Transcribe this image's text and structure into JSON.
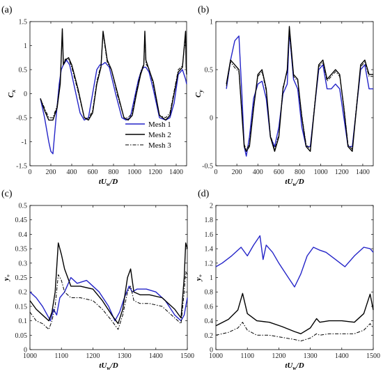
{
  "colors": {
    "mesh1": "#2424c8",
    "mesh2": "#000000",
    "mesh3": "#000000"
  },
  "chart_data": [
    {
      "type": "line",
      "panel_label": "(a)",
      "xlabel": {
        "main": "tU",
        "sub": "w",
        "tail": "/D"
      },
      "ylabel": {
        "main": "C",
        "sub": "x"
      },
      "xlim": [
        0,
        1500
      ],
      "ylim": [
        -1.5,
        1.5
      ],
      "xticks": [
        0,
        200,
        400,
        600,
        800,
        1000,
        1200,
        1400
      ],
      "yticks": [
        -1.5,
        -1,
        -0.5,
        0,
        0.5,
        1,
        1.5
      ],
      "legend": {
        "position": "bottom-right",
        "entries": [
          "Mesh 1",
          "Mesh 2",
          "Mesh 3"
        ]
      },
      "series": [
        {
          "name": "Mesh 1",
          "style": "solid",
          "color": "#2424c8",
          "x": [
            100,
            140,
            180,
            200,
            220,
            250,
            280,
            300,
            320,
            350,
            380,
            420,
            480,
            520,
            560,
            600,
            640,
            670,
            690,
            720,
            760,
            820,
            880,
            920,
            960,
            1000,
            1040,
            1070,
            1090,
            1110,
            1140,
            1180,
            1240,
            1300,
            1340,
            1380,
            1420,
            1460,
            1490,
            1500
          ],
          "y": [
            -0.1,
            -0.5,
            -1.0,
            -1.2,
            -1.25,
            -0.5,
            0.2,
            0.5,
            0.6,
            0.7,
            0.6,
            0.2,
            -0.4,
            -0.55,
            -0.5,
            0.0,
            0.5,
            0.6,
            0.6,
            0.65,
            0.55,
            0.0,
            -0.5,
            -0.55,
            -0.5,
            -0.1,
            0.3,
            0.5,
            0.55,
            0.55,
            0.45,
            0.1,
            -0.5,
            -0.55,
            -0.5,
            -0.2,
            0.4,
            0.5,
            0.3,
            0.2
          ]
        },
        {
          "name": "Mesh 2",
          "style": "solid",
          "color": "#000000",
          "x": [
            100,
            140,
            180,
            220,
            260,
            290,
            310,
            320,
            340,
            370,
            400,
            460,
            520,
            560,
            600,
            640,
            680,
            700,
            740,
            780,
            840,
            900,
            940,
            980,
            1020,
            1060,
            1090,
            1100,
            1110,
            1140,
            1180,
            1240,
            1300,
            1340,
            1380,
            1420,
            1460,
            1490,
            1495,
            1500
          ],
          "y": [
            -0.1,
            -0.35,
            -0.55,
            -0.55,
            -0.3,
            0.2,
            1.35,
            0.6,
            0.7,
            0.75,
            0.6,
            0.1,
            -0.5,
            -0.55,
            -0.4,
            0.2,
            0.55,
            1.3,
            0.7,
            0.5,
            0.0,
            -0.5,
            -0.55,
            -0.45,
            0.0,
            0.4,
            0.6,
            1.3,
            0.7,
            0.5,
            0.25,
            -0.45,
            -0.55,
            -0.45,
            0.0,
            0.45,
            0.55,
            1.3,
            0.6,
            0.4
          ]
        },
        {
          "name": "Mesh 3",
          "style": "dashdot",
          "color": "#000000",
          "x": [
            100,
            140,
            180,
            220,
            260,
            290,
            310,
            320,
            340,
            370,
            400,
            460,
            520,
            560,
            600,
            640,
            680,
            700,
            740,
            780,
            840,
            900,
            940,
            980,
            1020,
            1060,
            1090,
            1100,
            1110,
            1140,
            1180,
            1240,
            1300,
            1340,
            1380,
            1420,
            1460,
            1490,
            1495,
            1500
          ],
          "y": [
            -0.1,
            -0.3,
            -0.5,
            -0.5,
            -0.25,
            0.25,
            1.3,
            0.65,
            0.72,
            0.72,
            0.55,
            0.05,
            -0.5,
            -0.52,
            -0.35,
            0.25,
            0.6,
            1.25,
            0.65,
            0.5,
            -0.05,
            -0.5,
            -0.5,
            -0.4,
            0.05,
            0.45,
            0.62,
            1.25,
            0.62,
            0.52,
            0.2,
            -0.45,
            -0.5,
            -0.4,
            0.05,
            0.5,
            0.58,
            1.2,
            0.55,
            0.45
          ]
        }
      ]
    },
    {
      "type": "line",
      "panel_label": "(b)",
      "xlabel": {
        "main": "tU",
        "sub": "w",
        "tail": "/D"
      },
      "ylabel": {
        "main": "C",
        "sub": "y"
      },
      "xlim": [
        0,
        1500
      ],
      "ylim": [
        -0.5,
        1.0
      ],
      "xticks": [
        0,
        200,
        400,
        600,
        800,
        1000,
        1200,
        1400
      ],
      "yticks": [
        -0.5,
        0,
        0.5,
        1
      ],
      "series": [
        {
          "name": "Mesh 1",
          "style": "solid",
          "color": "#2424c8",
          "x": [
            100,
            140,
            180,
            220,
            250,
            270,
            290,
            320,
            360,
            400,
            440,
            480,
            520,
            560,
            600,
            640,
            680,
            700,
            740,
            780,
            820,
            860,
            900,
            940,
            980,
            1020,
            1060,
            1100,
            1140,
            1180,
            1220,
            1260,
            1300,
            1340,
            1380,
            1420,
            1460,
            1500
          ],
          "y": [
            0.3,
            0.6,
            0.8,
            0.85,
            0.2,
            -0.3,
            -0.4,
            -0.2,
            0.2,
            0.35,
            0.38,
            0.2,
            -0.2,
            -0.3,
            -0.1,
            0.25,
            0.35,
            0.9,
            0.4,
            0.3,
            -0.1,
            -0.3,
            -0.3,
            0.1,
            0.5,
            0.55,
            0.3,
            0.3,
            0.35,
            0.3,
            0.0,
            -0.3,
            -0.3,
            0.1,
            0.5,
            0.55,
            0.3,
            0.3
          ]
        },
        {
          "name": "Mesh 2",
          "style": "solid",
          "color": "#000000",
          "x": [
            100,
            140,
            180,
            220,
            250,
            270,
            290,
            320,
            360,
            400,
            440,
            480,
            520,
            560,
            600,
            640,
            680,
            700,
            740,
            780,
            820,
            860,
            900,
            940,
            980,
            1020,
            1060,
            1100,
            1140,
            1180,
            1220,
            1260,
            1300,
            1340,
            1380,
            1420,
            1460,
            1500
          ],
          "y": [
            0.35,
            0.6,
            0.55,
            0.5,
            0.0,
            -0.3,
            -0.35,
            -0.3,
            0.1,
            0.45,
            0.5,
            0.3,
            -0.2,
            -0.35,
            -0.2,
            0.3,
            0.5,
            0.95,
            0.45,
            0.4,
            0.0,
            -0.3,
            -0.35,
            0.1,
            0.55,
            0.6,
            0.4,
            0.45,
            0.5,
            0.45,
            0.1,
            -0.3,
            -0.35,
            0.1,
            0.55,
            0.6,
            0.45,
            0.45
          ]
        },
        {
          "name": "Mesh 3",
          "style": "dashdot",
          "color": "#000000",
          "x": [
            100,
            140,
            180,
            220,
            250,
            270,
            290,
            320,
            360,
            400,
            440,
            480,
            520,
            560,
            600,
            640,
            680,
            700,
            740,
            780,
            820,
            860,
            900,
            940,
            980,
            1020,
            1060,
            1100,
            1140,
            1180,
            1220,
            1260,
            1300,
            1340,
            1380,
            1420,
            1460,
            1500
          ],
          "y": [
            0.33,
            0.58,
            0.52,
            0.48,
            0.02,
            -0.28,
            -0.33,
            -0.28,
            0.12,
            0.43,
            0.48,
            0.28,
            -0.18,
            -0.33,
            -0.18,
            0.32,
            0.48,
            0.9,
            0.43,
            0.38,
            0.02,
            -0.28,
            -0.33,
            0.12,
            0.53,
            0.58,
            0.38,
            0.43,
            0.48,
            0.43,
            0.12,
            -0.28,
            -0.33,
            0.12,
            0.53,
            0.58,
            0.43,
            0.43
          ]
        }
      ]
    },
    {
      "type": "line",
      "panel_label": "(c)",
      "xlabel": {
        "main": "tU",
        "sub": "w",
        "tail": "/D"
      },
      "ylabel": {
        "main": "y",
        "sub": "+"
      },
      "xlim": [
        1000,
        1500
      ],
      "ylim": [
        0,
        0.5
      ],
      "xticks": [
        1000,
        1100,
        1200,
        1300,
        1400,
        1500
      ],
      "yticks": [
        0,
        0.05,
        0.1,
        0.15,
        0.2,
        0.25,
        0.3,
        0.35,
        0.4,
        0.45,
        0.5
      ],
      "series": [
        {
          "name": "Mesh 1",
          "style": "solid",
          "color": "#2424c8",
          "x": [
            1000,
            1020,
            1040,
            1055,
            1065,
            1075,
            1085,
            1095,
            1110,
            1130,
            1150,
            1180,
            1220,
            1250,
            1270,
            1285,
            1300,
            1315,
            1325,
            1340,
            1370,
            1400,
            1430,
            1460,
            1480,
            1490,
            1500
          ],
          "y": [
            0.2,
            0.18,
            0.15,
            0.12,
            0.1,
            0.14,
            0.12,
            0.18,
            0.2,
            0.25,
            0.23,
            0.24,
            0.2,
            0.15,
            0.1,
            0.13,
            0.18,
            0.22,
            0.2,
            0.21,
            0.21,
            0.2,
            0.17,
            0.12,
            0.1,
            0.12,
            0.18
          ]
        },
        {
          "name": "Mesh 2",
          "style": "solid",
          "color": "#000000",
          "x": [
            1000,
            1020,
            1040,
            1060,
            1070,
            1080,
            1090,
            1100,
            1110,
            1130,
            1160,
            1200,
            1230,
            1260,
            1280,
            1295,
            1310,
            1320,
            1330,
            1350,
            1380,
            1420,
            1460,
            1480,
            1490,
            1495,
            1500
          ],
          "y": [
            0.17,
            0.14,
            0.12,
            0.1,
            0.13,
            0.2,
            0.37,
            0.33,
            0.28,
            0.22,
            0.22,
            0.21,
            0.17,
            0.12,
            0.09,
            0.14,
            0.25,
            0.28,
            0.2,
            0.19,
            0.19,
            0.18,
            0.14,
            0.11,
            0.25,
            0.37,
            0.35
          ]
        },
        {
          "name": "Mesh 3",
          "style": "dashdot",
          "color": "#000000",
          "x": [
            1000,
            1020,
            1040,
            1060,
            1070,
            1080,
            1090,
            1100,
            1110,
            1130,
            1160,
            1200,
            1230,
            1260,
            1280,
            1295,
            1310,
            1320,
            1330,
            1350,
            1380,
            1420,
            1460,
            1480,
            1490,
            1495,
            1500
          ],
          "y": [
            0.13,
            0.1,
            0.09,
            0.07,
            0.1,
            0.15,
            0.26,
            0.24,
            0.2,
            0.18,
            0.18,
            0.17,
            0.14,
            0.1,
            0.07,
            0.12,
            0.2,
            0.22,
            0.17,
            0.16,
            0.16,
            0.15,
            0.11,
            0.09,
            0.2,
            0.27,
            0.26
          ]
        }
      ]
    },
    {
      "type": "line",
      "panel_label": "(d)",
      "xlabel": {
        "main": "tU",
        "sub": "w",
        "tail": "/D"
      },
      "ylabel": {
        "main": "y",
        "sub": "+"
      },
      "xlim": [
        1000,
        1500
      ],
      "ylim": [
        0,
        2
      ],
      "xticks": [
        1000,
        1100,
        1200,
        1300,
        1400,
        1500
      ],
      "yticks": [
        0,
        0.2,
        0.4,
        0.6,
        0.8,
        1,
        1.2,
        1.4,
        1.6,
        1.8,
        2
      ],
      "series": [
        {
          "name": "Mesh 1",
          "style": "solid",
          "color": "#2424c8",
          "x": [
            1000,
            1020,
            1050,
            1080,
            1100,
            1120,
            1140,
            1150,
            1160,
            1180,
            1200,
            1230,
            1250,
            1270,
            1290,
            1310,
            1330,
            1350,
            1380,
            1410,
            1440,
            1470,
            1490,
            1500
          ],
          "y": [
            1.15,
            1.2,
            1.3,
            1.42,
            1.3,
            1.45,
            1.58,
            1.25,
            1.45,
            1.35,
            1.2,
            1.0,
            0.87,
            1.05,
            1.3,
            1.42,
            1.38,
            1.35,
            1.25,
            1.15,
            1.3,
            1.42,
            1.4,
            1.35
          ]
        },
        {
          "name": "Mesh 2",
          "style": "solid",
          "color": "#000000",
          "x": [
            1000,
            1040,
            1070,
            1085,
            1100,
            1130,
            1170,
            1210,
            1250,
            1270,
            1300,
            1320,
            1330,
            1360,
            1400,
            1440,
            1470,
            1490,
            1500
          ],
          "y": [
            0.33,
            0.42,
            0.55,
            0.78,
            0.5,
            0.4,
            0.38,
            0.32,
            0.25,
            0.22,
            0.3,
            0.43,
            0.38,
            0.4,
            0.4,
            0.38,
            0.5,
            0.77,
            0.55
          ]
        },
        {
          "name": "Mesh 3",
          "style": "dashdot",
          "color": "#000000",
          "x": [
            1000,
            1040,
            1070,
            1085,
            1100,
            1130,
            1170,
            1210,
            1250,
            1270,
            1300,
            1320,
            1330,
            1360,
            1400,
            1440,
            1470,
            1490,
            1500
          ],
          "y": [
            0.2,
            0.24,
            0.3,
            0.38,
            0.27,
            0.2,
            0.2,
            0.17,
            0.14,
            0.12,
            0.16,
            0.22,
            0.2,
            0.22,
            0.22,
            0.22,
            0.27,
            0.36,
            0.3
          ]
        }
      ]
    }
  ]
}
